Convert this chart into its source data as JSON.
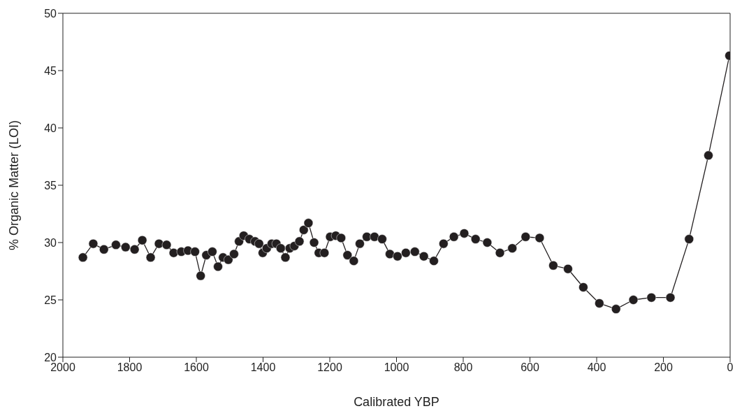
{
  "chart_data": {
    "type": "line",
    "xlabel": "Calibrated YBP",
    "ylabel": "% Organic Matter (LOI)",
    "x": [
      1940,
      1909,
      1877,
      1841,
      1812,
      1785,
      1762,
      1737,
      1712,
      1689,
      1668,
      1645,
      1625,
      1604,
      1587,
      1570,
      1552,
      1535,
      1520,
      1504,
      1487,
      1472,
      1458,
      1441,
      1424,
      1412,
      1401,
      1389,
      1374,
      1360,
      1347,
      1333,
      1320,
      1306,
      1291,
      1278,
      1264,
      1247,
      1233,
      1216,
      1199,
      1182,
      1166,
      1147,
      1128,
      1110,
      1089,
      1066,
      1043,
      1020,
      997,
      972,
      945,
      918,
      888,
      859,
      828,
      797,
      763,
      728,
      690,
      653,
      613,
      571,
      530,
      486,
      440,
      392,
      342,
      290,
      236,
      179,
      123,
      65,
      2
    ],
    "series": [
      {
        "color": "#231f20",
        "values": [
          28.7,
          29.9,
          29.4,
          29.8,
          29.6,
          29.4,
          30.2,
          28.7,
          29.9,
          29.8,
          29.1,
          29.2,
          29.3,
          29.2,
          27.1,
          28.9,
          29.2,
          27.9,
          28.7,
          28.5,
          29.0,
          30.1,
          30.6,
          30.3,
          30.1,
          29.9,
          29.1,
          29.5,
          29.9,
          29.9,
          29.5,
          28.7,
          29.5,
          29.7,
          30.1,
          31.1,
          31.7,
          30.0,
          29.1,
          29.1,
          30.5,
          30.6,
          30.4,
          28.9,
          28.4,
          29.9,
          30.5,
          30.5,
          30.3,
          29.0,
          28.8,
          29.1,
          29.2,
          28.8,
          28.4,
          29.9,
          30.5,
          30.8,
          30.3,
          30.0,
          29.1,
          29.5,
          30.5,
          30.4,
          28.0,
          27.7,
          26.1,
          24.7,
          24.2,
          25.0,
          25.2,
          25.2,
          30.3,
          37.6,
          46.3
        ]
      }
    ],
    "xlim": [
      2000,
      0
    ],
    "xticks": [
      2000,
      1800,
      1600,
      1400,
      1200,
      1000,
      800,
      600,
      400,
      200,
      0
    ],
    "ylim": [
      20,
      50
    ],
    "yticks": [
      20,
      25,
      30,
      35,
      40,
      45,
      50
    ],
    "marker": "circle",
    "line_style": "solid",
    "grid": false,
    "legend": false
  }
}
